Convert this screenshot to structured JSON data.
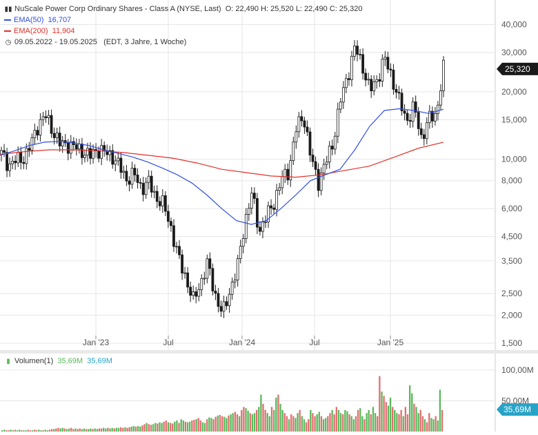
{
  "header": {
    "title": "NuScale Power Corp Ordinary Shares - Class A (NYSE, Last)",
    "ohlc": "O: 22,490  H: 25,520  L: 22,490  C: 25,320",
    "ema50_label": "EMA(50)",
    "ema50_value": "16,707",
    "ema200_label": "EMA(200)",
    "ema200_value": "11,904",
    "range": "09.05.2022 - 19.05.2025",
    "range_note": "(EDT, 3 Jahre, 1 Woche)"
  },
  "volume_legend": {
    "label": "Volumen(1)",
    "value1": "35,69M",
    "value2": "35,69M"
  },
  "colors": {
    "up": "#1a1a1a",
    "ema50": "#2f4fe0",
    "ema200": "#e0302a",
    "vol_up": "#5cb85c",
    "vol_down": "#e07070",
    "badge": "#1a1a1a",
    "vol_badge": "#27a3c7",
    "grid": "#e6e6e6"
  },
  "chart_data": {
    "type": "candlestick",
    "y_scale": "log",
    "ylim": [
      1.5,
      45
    ],
    "y_ticks": [
      "40,000",
      "30,000",
      "20,000",
      "15,000",
      "10,000",
      "8,000",
      "6,000",
      "4,500",
      "3,500",
      "2,500",
      "2,000",
      "1,500"
    ],
    "y_tick_values": [
      40,
      30,
      20,
      15,
      10,
      8,
      6,
      4.5,
      3.5,
      2.5,
      2,
      1.5
    ],
    "x_ticks": [
      "Jan '23",
      "Jul",
      "Jan '24",
      "Jul",
      "Jan '25"
    ],
    "last_price": "25,320",
    "price_points": [
      10.5,
      9.5,
      9.8,
      10.2,
      11.5,
      14.5,
      15.5,
      13.5,
      11.5,
      11.8,
      11.2,
      11.0,
      10.2,
      11.2,
      10.6,
      10.5,
      9.2,
      8.2,
      8.5,
      7.5,
      7.8,
      6.8,
      6.2,
      5.0,
      3.6,
      3.0,
      2.3,
      2.8,
      3.4,
      2.5,
      2.0,
      2.6,
      3.2,
      5.2,
      7.0,
      4.8,
      5.5,
      6.5,
      8.0,
      9.0,
      13.5,
      16.0,
      10.0,
      8.0,
      9.5,
      12.0,
      18.0,
      24.0,
      31.5,
      26.5,
      20.0,
      23.0,
      28.0,
      23.5,
      18.0,
      15.0,
      17.0,
      12.5,
      15.0,
      16.0,
      25.32
    ],
    "ema50": [
      10.4,
      10.9,
      11.5,
      11.9,
      12.0,
      11.8,
      11.5,
      11.0,
      10.6,
      10.2,
      9.7,
      9.1,
      8.5,
      7.8,
      6.9,
      6.0,
      5.3,
      5.1,
      5.3,
      6.0,
      6.9,
      8.0,
      8.5,
      9.0,
      11.0,
      14.0,
      16.5,
      16.8,
      16.5,
      16.0,
      16.707
    ],
    "ema200": [
      10.5,
      10.8,
      11.0,
      11.0,
      10.9,
      10.7,
      10.4,
      10.1,
      9.6,
      9.0,
      8.7,
      8.4,
      8.3,
      8.5,
      8.9,
      9.3,
      10.2,
      11.2,
      11.904
    ],
    "volume": {
      "ylim": [
        0,
        120
      ],
      "y_ticks": [
        "100,00M",
        "50,00M"
      ],
      "y_tick_values": [
        100,
        50
      ],
      "unit": "M",
      "last_value": "35,69M",
      "values": [
        2,
        3,
        2,
        2,
        3,
        2,
        3,
        2,
        3,
        2,
        2,
        2,
        3,
        2,
        2,
        3,
        2,
        3,
        2,
        2,
        3,
        2,
        3,
        4,
        4,
        5,
        6,
        5,
        6,
        5,
        4,
        5,
        6,
        4,
        5,
        4,
        5,
        4,
        5,
        4,
        4,
        5,
        4,
        5,
        4,
        5,
        5,
        6,
        5,
        6,
        5,
        6,
        5,
        6,
        6,
        7,
        6,
        7,
        6,
        7,
        8,
        9,
        8,
        9,
        8,
        10,
        12,
        14,
        12,
        11,
        12,
        14,
        13,
        15,
        14,
        16,
        18,
        15,
        14,
        13,
        16,
        18,
        14,
        20,
        18,
        16,
        15,
        16,
        18,
        19,
        20,
        22,
        18,
        15,
        14,
        20,
        23,
        22,
        20,
        24,
        26,
        27,
        25,
        24,
        22,
        26,
        28,
        30,
        32,
        28,
        25,
        35,
        40,
        38,
        34,
        30,
        28,
        30,
        35,
        40,
        60,
        45,
        35,
        30,
        25,
        40,
        35,
        55,
        60,
        45,
        35,
        30,
        25,
        20,
        28,
        25,
        22,
        30,
        35,
        25,
        20,
        15,
        20,
        35,
        30,
        25,
        28,
        32,
        25,
        20,
        22,
        25,
        30,
        35,
        28,
        40,
        35,
        30,
        28,
        35,
        33,
        28,
        25,
        20,
        25,
        35,
        38,
        25,
        20,
        30,
        35,
        28,
        40,
        30,
        25,
        90,
        65,
        58,
        48,
        42,
        55,
        40,
        35,
        30,
        28,
        35,
        25,
        40,
        28,
        75,
        62,
        45,
        40,
        30,
        35,
        25,
        20,
        15,
        30,
        22,
        20,
        25,
        18,
        68,
        35
      ]
    }
  }
}
